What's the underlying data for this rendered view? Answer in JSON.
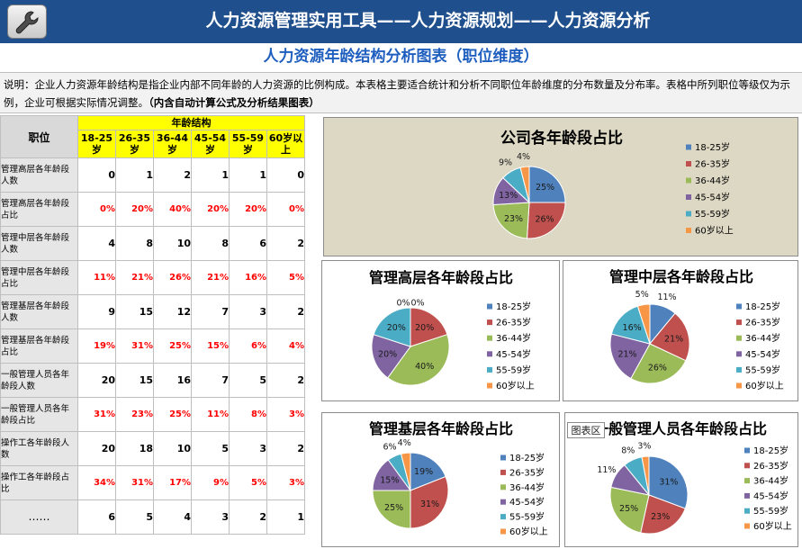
{
  "header": {
    "title": "人力资源管理实用工具——人力资源规划——人力资源分析",
    "subtitle": "人力资源年龄结构分析图表（职位维度）"
  },
  "description": {
    "text": "说明：企业人力资源年龄结构是指企业内部不同年龄的人力资源的比例构成。本表格主要适合统计和分析不同职位年龄维度的分布数量及分布率。表格中所列职位等级仅为示例，企业可根据实际情况调整。",
    "bold": "（内含自动计算公式及分析结果图表）"
  },
  "table": {
    "position_header": "职位",
    "group_header": "年龄结构",
    "age_headers": [
      "18-25岁",
      "26-35岁",
      "36-44岁",
      "45-54岁",
      "55-59岁",
      "60岁以上"
    ],
    "rows": [
      {
        "label": "管理高层各年龄段人数",
        "type": "num",
        "values": [
          "0",
          "1",
          "2",
          "1",
          "1",
          "0"
        ]
      },
      {
        "label": "管理高层各年龄段占比",
        "type": "pct",
        "values": [
          "0%",
          "20%",
          "40%",
          "20%",
          "20%",
          "0%"
        ]
      },
      {
        "label": "管理中层各年龄段人数",
        "type": "num",
        "values": [
          "4",
          "8",
          "10",
          "8",
          "6",
          "2"
        ]
      },
      {
        "label": "管理中层各年龄段占比",
        "type": "pct",
        "values": [
          "11%",
          "21%",
          "26%",
          "21%",
          "16%",
          "5%"
        ]
      },
      {
        "label": "管理基层各年龄段人数",
        "type": "num",
        "values": [
          "9",
          "15",
          "12",
          "7",
          "3",
          "2"
        ]
      },
      {
        "label": "管理基层各年龄段占比",
        "type": "pct",
        "values": [
          "19%",
          "31%",
          "25%",
          "15%",
          "6%",
          "4%"
        ]
      },
      {
        "label": "一般管理人员各年龄段人数",
        "type": "num",
        "values": [
          "20",
          "15",
          "16",
          "7",
          "5",
          "2"
        ]
      },
      {
        "label": "一般管理人员各年龄段占比",
        "type": "pct",
        "values": [
          "31%",
          "23%",
          "25%",
          "11%",
          "8%",
          "3%"
        ]
      },
      {
        "label": "操作工各年龄段人数",
        "type": "num",
        "values": [
          "20",
          "18",
          "10",
          "5",
          "3",
          "2"
        ]
      },
      {
        "label": "操作工各年龄段占比",
        "type": "pct",
        "values": [
          "34%",
          "31%",
          "17%",
          "9%",
          "5%",
          "3%"
        ]
      },
      {
        "label": "……",
        "type": "num",
        "values": [
          "6",
          "5",
          "4",
          "3",
          "2",
          "1"
        ]
      }
    ]
  },
  "chart_tooltip": "图表区",
  "colors": {
    "header_bg": "#1f4f8c",
    "subtitle": "#1f5fbf",
    "age_header_bg": "#ffff00",
    "percent_text": "#ff0000",
    "series": [
      "#4f81bd",
      "#c0504d",
      "#9bbb59",
      "#8064a2",
      "#4bacc6",
      "#f79646"
    ]
  },
  "chart_data": [
    {
      "type": "pie",
      "title": "公司各年龄段占比",
      "categories": [
        "18-25岁",
        "26-35岁",
        "36-44岁",
        "45-54岁",
        "55-59岁",
        "60岁以上"
      ],
      "values": [
        25,
        26,
        23,
        13,
        9,
        4
      ],
      "labels": [
        "25%",
        "26%",
        "23%",
        "13%",
        "9%",
        "4%"
      ],
      "legend": "right"
    },
    {
      "type": "pie",
      "title": "管理高层各年龄段占比",
      "categories": [
        "18-25岁",
        "26-35岁",
        "36-44岁",
        "45-54岁",
        "55-59岁",
        "60岁以上"
      ],
      "values": [
        0,
        20,
        40,
        20,
        20,
        0
      ],
      "labels": [
        "0%",
        "20%",
        "40%",
        "20%",
        "20%",
        "0%"
      ],
      "legend": "right"
    },
    {
      "type": "pie",
      "title": "管理中层各年龄段占比",
      "categories": [
        "18-25岁",
        "26-35岁",
        "36-44岁",
        "45-54岁",
        "55-59岁",
        "60岁以上"
      ],
      "values": [
        11,
        21,
        26,
        21,
        16,
        5
      ],
      "labels": [
        "11%",
        "21%",
        "26%",
        "21%",
        "16%",
        "5%"
      ],
      "legend": "right"
    },
    {
      "type": "pie",
      "title": "管理基层各年龄段占比",
      "categories": [
        "18-25岁",
        "26-35岁",
        "36-44岁",
        "45-54岁",
        "55-59岁",
        "60岁以上"
      ],
      "values": [
        19,
        31,
        25,
        15,
        6,
        4
      ],
      "labels": [
        "19%",
        "31%",
        "25%",
        "15%",
        "6%",
        "4%"
      ],
      "legend": "right"
    },
    {
      "type": "pie",
      "title": "一般管理人员各年龄段占比",
      "categories": [
        "18-25岁",
        "26-35岁",
        "36-44岁",
        "45-54岁",
        "55-59岁",
        "60岁以上"
      ],
      "values": [
        31,
        23,
        25,
        11,
        8,
        3
      ],
      "labels": [
        "31%",
        "23%",
        "25%",
        "11%",
        "8%",
        "3%"
      ],
      "legend": "right"
    }
  ]
}
